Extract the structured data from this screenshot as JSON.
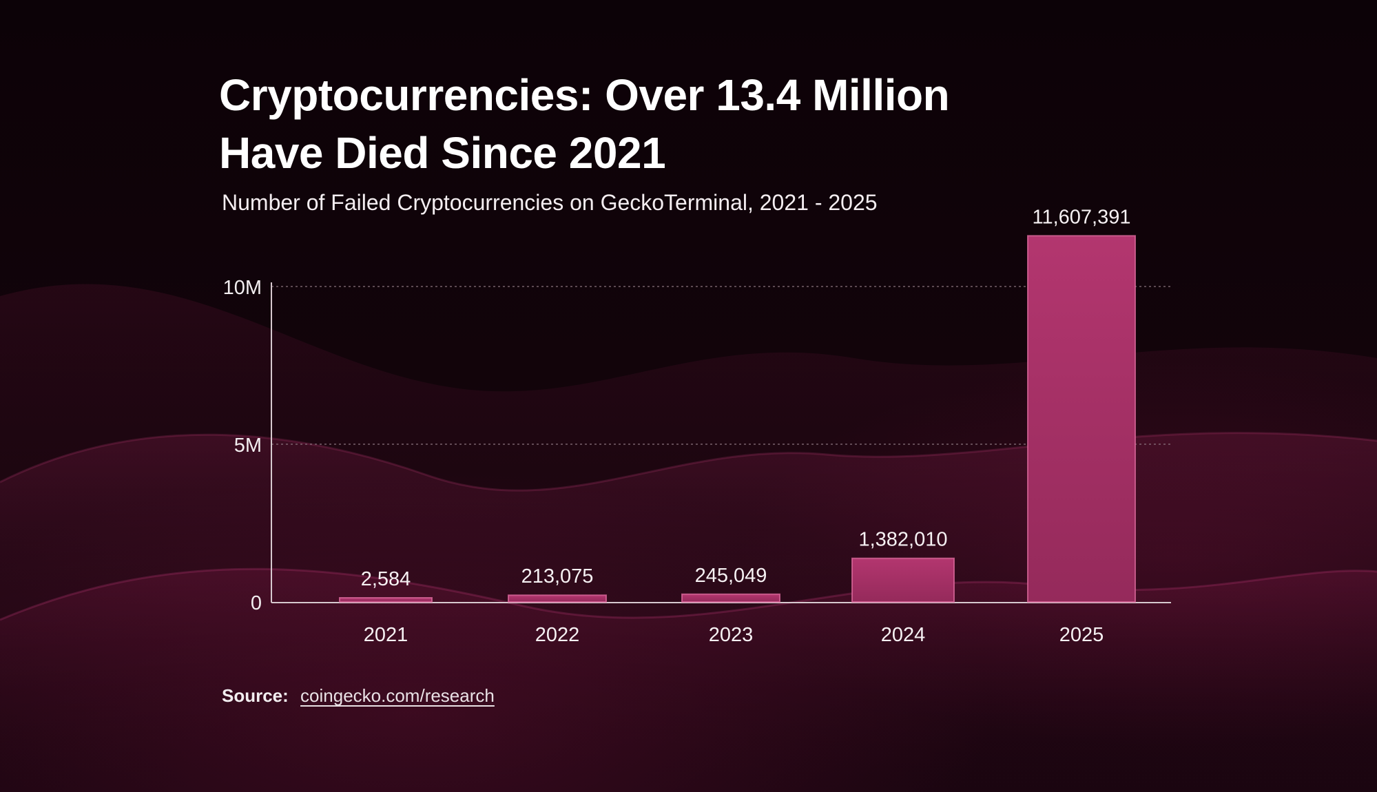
{
  "title": {
    "line1": "Cryptocurrencies: Over 13.4 Million",
    "line2": "Have Died Since 2021"
  },
  "subtitle": "Number of Failed Cryptocurrencies on GeckoTerminal, 2021 - 2025",
  "source": {
    "label": "Source:",
    "link": "coingecko.com/research"
  },
  "colors": {
    "bar": "#b3366f",
    "bar_edge": "#d9689a",
    "axis": "#d7c9cf",
    "grid": "#8f7a84",
    "background": "#0b0307"
  },
  "chart_data": {
    "type": "bar",
    "categories": [
      "2021",
      "2022",
      "2023",
      "2024",
      "2025"
    ],
    "values": [
      2584,
      213075,
      245049,
      1382010,
      11607391
    ],
    "value_labels": [
      "2,584",
      "213,075",
      "245,049",
      "1,382,010",
      "11,607,391"
    ],
    "title": "Cryptocurrencies: Over 13.4 Million Have Died Since 2021",
    "subtitle": "Number of Failed Cryptocurrencies on GeckoTerminal, 2021 - 2025",
    "xlabel": "",
    "ylabel": "",
    "yticks": [
      0,
      5000000,
      10000000
    ],
    "ytick_labels": [
      "0",
      "5M",
      "10M"
    ],
    "ylim": [
      0,
      11607391
    ],
    "grid": true,
    "legend": "none"
  }
}
